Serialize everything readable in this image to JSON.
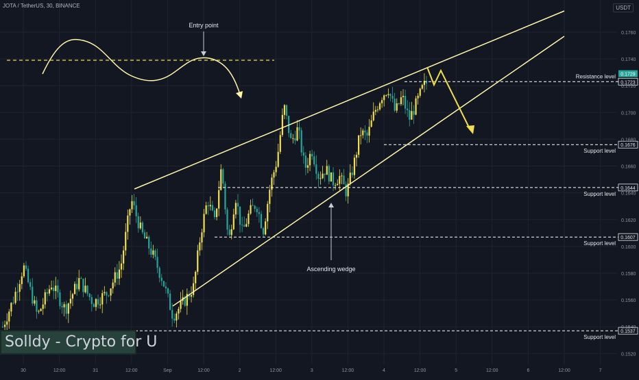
{
  "header": {
    "symbol_line": "JOTA / TetherUS, 30, BINANCE",
    "currency": "USDT"
  },
  "watermark": "Solldy - Crypto for U",
  "colors": {
    "background": "#131722",
    "up_candle": "#f2e04a",
    "down_candle": "#26a69a",
    "annotation": "#fff7a8",
    "grid": "#1f2431",
    "axis_text": "#8f95a2"
  },
  "chart_data": {
    "type": "candlestick",
    "title": "",
    "xlabel": "",
    "ylabel": "",
    "ylim": [
      0.1512,
      0.1784
    ],
    "y_ticks": [
      0.152,
      0.154,
      0.156,
      0.158,
      0.16,
      0.162,
      0.164,
      0.166,
      0.168,
      0.17,
      0.172,
      0.174,
      0.176
    ],
    "y_tick_labels": [
      "0.1520",
      "0.1540",
      "0.1560",
      "0.1580",
      "0.1600",
      "0.1620",
      "0.1640",
      "0.1660",
      "0.1680",
      "0.1700",
      "0.1720",
      "0.1740",
      "0.1760"
    ],
    "x_tick_labels": [
      "30",
      "12:00",
      "31",
      "12:00",
      "Sep",
      "12:00",
      "2",
      "12:00",
      "3",
      "12:00",
      "4",
      "12:00",
      "5",
      "12:00",
      "6",
      "12:00",
      "7"
    ],
    "price_path": [
      [
        0,
        0.154
      ],
      [
        3,
        0.156
      ],
      [
        6,
        0.1585
      ],
      [
        10,
        0.1548
      ],
      [
        14,
        0.1572
      ],
      [
        18,
        0.1553
      ],
      [
        22,
        0.1575
      ],
      [
        26,
        0.1558
      ],
      [
        30,
        0.1565
      ],
      [
        34,
        0.1585
      ],
      [
        37,
        0.1635
      ],
      [
        40,
        0.161
      ],
      [
        43,
        0.1595
      ],
      [
        46,
        0.1575
      ],
      [
        49,
        0.1548
      ],
      [
        52,
        0.1558
      ],
      [
        55,
        0.157
      ],
      [
        57,
        0.161
      ],
      [
        59,
        0.1635
      ],
      [
        61,
        0.1618
      ],
      [
        63,
        0.166
      ],
      [
        65,
        0.1602
      ],
      [
        67,
        0.1638
      ],
      [
        69,
        0.161
      ],
      [
        71,
        0.1625
      ],
      [
        73,
        0.1632
      ],
      [
        75,
        0.1612
      ],
      [
        77,
        0.1645
      ],
      [
        79,
        0.1665
      ],
      [
        81,
        0.1705
      ],
      [
        83,
        0.1678
      ],
      [
        85,
        0.1688
      ],
      [
        87,
        0.1658
      ],
      [
        89,
        0.1672
      ],
      [
        91,
        0.1652
      ],
      [
        93,
        0.1658
      ],
      [
        95,
        0.1648
      ],
      [
        97,
        0.1652
      ],
      [
        99,
        0.164
      ],
      [
        101,
        0.166
      ],
      [
        103,
        0.1685
      ],
      [
        105,
        0.1682
      ],
      [
        107,
        0.17
      ],
      [
        109,
        0.1712
      ],
      [
        111,
        0.1718
      ],
      [
        113,
        0.17
      ],
      [
        115,
        0.1712
      ],
      [
        117,
        0.1695
      ],
      [
        119,
        0.1706
      ],
      [
        121,
        0.1719
      ],
      [
        122,
        0.1722
      ]
    ],
    "horizontal_levels": [
      {
        "value": 0.1723,
        "label": "Resistance level",
        "price_label": "0.1723"
      },
      {
        "value": 0.1676,
        "label": "Support level",
        "price_label": "0.1676"
      },
      {
        "value": 0.1644,
        "label": "Support level",
        "price_label": "0.1644"
      },
      {
        "value": 0.1607,
        "label": "Support level",
        "price_label": "0.1607"
      },
      {
        "value": 0.1537,
        "label": "Support level",
        "price_label": "0.1537"
      }
    ],
    "current_price": {
      "value": 0.1729,
      "label": "0.1729"
    },
    "annotations": [
      {
        "text": "Entry point"
      },
      {
        "text": "Ascending wedge"
      }
    ]
  }
}
